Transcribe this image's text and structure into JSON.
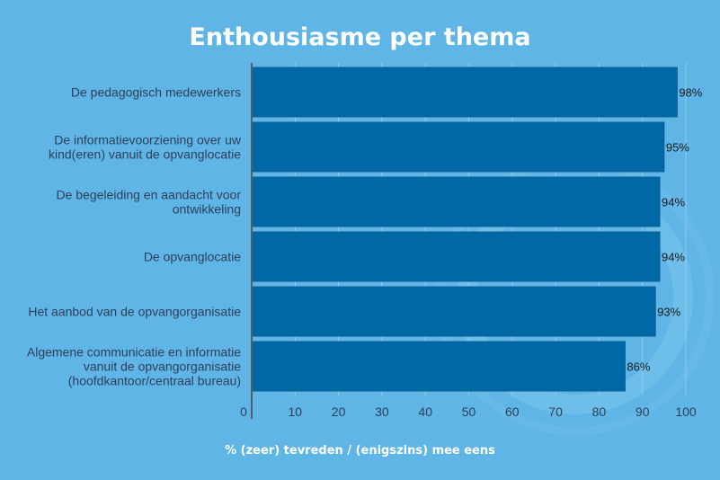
{
  "colors": {
    "background": "#5eb5e6",
    "bar": "#0068a4",
    "bar_border": "#0d5e93",
    "text": "#2f3f58",
    "title": "#ffffff"
  },
  "chart_data": {
    "type": "bar",
    "orientation": "horizontal",
    "title": "Enthousiasme per thema",
    "xlabel": "% (zeer) tevreden / (enigszins) mee eens",
    "ylabel": "",
    "xlim": [
      0,
      100
    ],
    "ticks": [
      0,
      10,
      20,
      30,
      40,
      50,
      60,
      70,
      80,
      90,
      100
    ],
    "grid": true,
    "categories": [
      [
        "De pedagogisch medewerkers"
      ],
      [
        "De informatievoorziening over uw",
        "kind(eren) vanuit de opvanglocatie"
      ],
      [
        "De begeleiding en aandacht voor",
        "ontwikkeling"
      ],
      [
        "De opvanglocatie"
      ],
      [
        "Het aanbod van de opvangorganisatie"
      ],
      [
        "Algemene communicatie en informatie",
        "vanuit de opvangorganisatie",
        "(hoofdkantoor/centraal bureau)"
      ]
    ],
    "values": [
      98,
      95,
      94,
      94,
      93,
      86
    ],
    "data_labels": [
      "98%",
      "95%",
      "94%",
      "94%",
      "93%",
      "86%"
    ]
  }
}
